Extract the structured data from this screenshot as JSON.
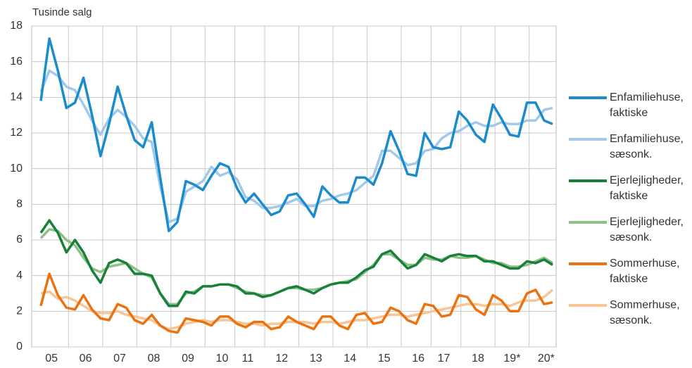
{
  "chart_data": {
    "type": "line",
    "y_label": "Tusinde salg",
    "categories": [
      null,
      "05",
      null,
      null,
      null,
      "06",
      null,
      null,
      null,
      "07",
      null,
      null,
      null,
      "08",
      null,
      null,
      null,
      "09",
      null,
      null,
      null,
      "10",
      null,
      null,
      "11",
      null,
      null,
      null,
      "12",
      null,
      null,
      null,
      "13",
      null,
      null,
      null,
      "14",
      null,
      null,
      null,
      "15",
      null,
      null,
      null,
      "16",
      null,
      null,
      "17",
      null,
      null,
      null,
      "18",
      null,
      null,
      null,
      "19*",
      null,
      null,
      null,
      "20*",
      null
    ],
    "ylim": [
      0,
      18
    ],
    "yticks": [
      0,
      2,
      4,
      6,
      8,
      10,
      12,
      14,
      16,
      18
    ],
    "grid": true,
    "legend": "right",
    "series": [
      {
        "name": "Enfamiliehuse, faktiske",
        "color": "#1b8ccb",
        "values": [
          13.8,
          17.3,
          15.5,
          13.4,
          13.7,
          15.1,
          13,
          10.7,
          12.5,
          14.6,
          13,
          11.6,
          11.2,
          12.6,
          9.5,
          6.5,
          7,
          9.3,
          9.1,
          8.8,
          9.6,
          10.3,
          10.1,
          8.9,
          8.1,
          8.6,
          8,
          7.4,
          7.6,
          8.5,
          8.6,
          8,
          7.3,
          9,
          8.5,
          8.1,
          8.1,
          9.5,
          9.5,
          9.1,
          10.3,
          12.1,
          11,
          9.7,
          9.6,
          12,
          11.2,
          11.1,
          11.2,
          13.2,
          12.7,
          11.9,
          11.5,
          13.6,
          12.8,
          11.9,
          11.8,
          13.7,
          13.7,
          12.7,
          12.5
        ]
      },
      {
        "name": "Enfamiliehuse, sæsonk.",
        "color": "#a3c9ea",
        "values": [
          14.3,
          15.5,
          15.2,
          14.6,
          14.4,
          13.6,
          12.7,
          11.9,
          12.8,
          13.3,
          12.9,
          12.4,
          11.7,
          11.5,
          9,
          7,
          7.2,
          8.7,
          9,
          9.3,
          10.1,
          9.6,
          9.8,
          9.4,
          8.4,
          8.2,
          7.8,
          7.8,
          7.9,
          8.1,
          8.3,
          7.9,
          7.9,
          8.2,
          8.3,
          8.5,
          8.6,
          8.8,
          9.2,
          9.6,
          11,
          11,
          10.6,
          10.2,
          10.3,
          11,
          11.1,
          11.7,
          12,
          12.1,
          12.4,
          12.6,
          12.4,
          12.4,
          12.6,
          12.5,
          12.5,
          12.7,
          12.7,
          13.3,
          13.4
        ]
      },
      {
        "name": "Ejerlejligheder, faktiske",
        "color": "#17813a",
        "values": [
          6.4,
          7.1,
          6.4,
          5.3,
          6,
          5.3,
          4.3,
          3.6,
          4.7,
          4.9,
          4.7,
          4.1,
          4.1,
          4,
          3,
          2.3,
          2.3,
          3.1,
          3,
          3.4,
          3.4,
          3.5,
          3.5,
          3.4,
          3,
          3,
          2.8,
          2.9,
          3.1,
          3.3,
          3.4,
          3.2,
          3,
          3.3,
          3.5,
          3.6,
          3.6,
          3.9,
          4.3,
          4.5,
          5.2,
          5.4,
          4.9,
          4.4,
          4.6,
          5.2,
          5,
          4.8,
          5.1,
          5.2,
          5.1,
          5.1,
          4.8,
          4.8,
          4.6,
          4.4,
          4.4,
          4.8,
          4.7,
          4.9,
          4.6
        ]
      },
      {
        "name": "Ejerlejligheder, sæsonk.",
        "color": "#8fc088",
        "values": [
          6.1,
          6.6,
          6.5,
          6,
          5.7,
          5,
          4.4,
          4.2,
          4.5,
          4.6,
          4.7,
          4.4,
          4.1,
          3.9,
          3,
          2.4,
          2.4,
          3,
          3.1,
          3.4,
          3.4,
          3.5,
          3.5,
          3.3,
          3.1,
          3,
          2.9,
          2.9,
          3.1,
          3.3,
          3.3,
          3.2,
          3.2,
          3.3,
          3.5,
          3.6,
          3.7,
          3.8,
          4.2,
          4.6,
          5.2,
          5.2,
          4.9,
          4.6,
          4.6,
          5,
          4.9,
          4.9,
          5.1,
          5,
          5,
          5.1,
          4.9,
          4.7,
          4.7,
          4.5,
          4.5,
          4.6,
          4.8,
          5,
          4.7
        ]
      },
      {
        "name": "Sommerhuse, faktiske",
        "color": "#ea7311",
        "values": [
          2.3,
          4.1,
          2.9,
          2.2,
          2.1,
          2.9,
          2.1,
          1.6,
          1.5,
          2.4,
          2.2,
          1.5,
          1.3,
          1.8,
          1.2,
          0.9,
          0.8,
          1.6,
          1.5,
          1.4,
          1.2,
          1.7,
          1.7,
          1.3,
          1.1,
          1.4,
          1.4,
          1.0,
          1.1,
          1.7,
          1.4,
          1.2,
          1.0,
          1.7,
          1.7,
          1.2,
          1.0,
          1.8,
          1.9,
          1.3,
          1.4,
          2.2,
          2.0,
          1.5,
          1.3,
          2.4,
          2.3,
          1.7,
          1.8,
          2.9,
          2.8,
          2.1,
          1.8,
          2.9,
          2.6,
          2.0,
          2.0,
          3.0,
          3.2,
          2.4,
          2.5
        ]
      },
      {
        "name": "Sommerhuse, sæsonk.",
        "color": "#f8c595",
        "values": [
          3.0,
          3.1,
          2.7,
          2.8,
          2.6,
          2.3,
          2.0,
          1.9,
          1.9,
          2.0,
          1.8,
          1.7,
          1.6,
          1.5,
          1.2,
          1.0,
          1.1,
          1.3,
          1.4,
          1.5,
          1.4,
          1.5,
          1.5,
          1.4,
          1.3,
          1.3,
          1.2,
          1.3,
          1.3,
          1.4,
          1.4,
          1.4,
          1.3,
          1.4,
          1.4,
          1.3,
          1.4,
          1.5,
          1.5,
          1.6,
          1.7,
          1.8,
          1.8,
          1.7,
          1.8,
          1.9,
          2.0,
          2.1,
          2.2,
          2.3,
          2.4,
          2.4,
          2.3,
          2.4,
          2.4,
          2.3,
          2.5,
          2.6,
          2.6,
          2.8,
          3.2
        ]
      }
    ]
  }
}
